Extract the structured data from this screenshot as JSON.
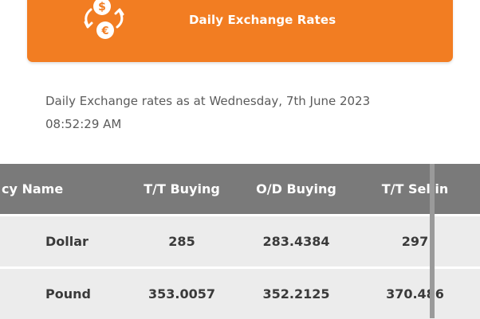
{
  "header": {
    "title": "Daily Exchange Rates",
    "icon": "currency-exchange-icon",
    "color": "#f27d22"
  },
  "timestamp": {
    "line1": "Daily Exchange rates as at Wednesday, 7th June 2023",
    "line2": "08:52:29 AM"
  },
  "table": {
    "columns": [
      "cy Name",
      "T/T Buying",
      "O/D Buying",
      "T/T Sellin"
    ],
    "rows": [
      {
        "name": "Dollar",
        "tt_buying": "285",
        "od_buying": "283.4384",
        "tt_selling": "297"
      },
      {
        "name": "Pound",
        "tt_buying": "353.0057",
        "od_buying": "352.2125",
        "tt_selling": "370.486"
      }
    ]
  }
}
